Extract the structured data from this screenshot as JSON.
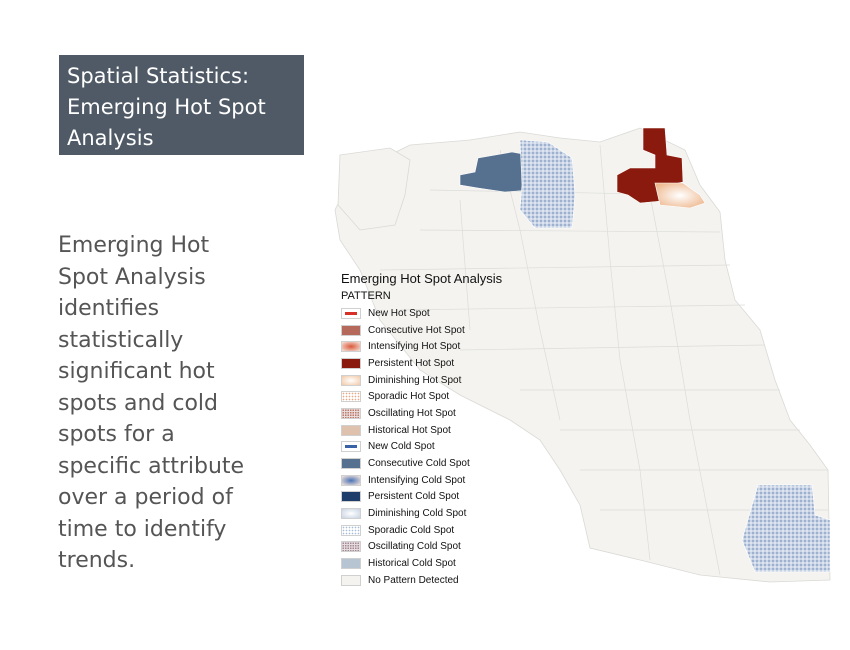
{
  "slide": {
    "title_lines": [
      "Spatial Statistics:",
      "Emerging Hot Spot",
      "Analysis"
    ],
    "body_lines": [
      "Emerging Hot",
      "Spot Analysis",
      "identifies",
      "statistically",
      "significant hot",
      "spots and cold",
      "spots for a",
      "specific attribute",
      "over a period of",
      "time to identify",
      "trends."
    ]
  },
  "map": {
    "legend": {
      "title": "Emerging Hot Spot Analysis",
      "subtitle": "PATTERN",
      "items": [
        {
          "label": "New Hot Spot",
          "color": "#d73027",
          "style": "outline"
        },
        {
          "label": "Consecutive Hot Spot",
          "color": "#b5695a",
          "style": "solid"
        },
        {
          "label": "Intensifying Hot Spot",
          "color": "#d9583b",
          "style": "radial"
        },
        {
          "label": "Persistent Hot Spot",
          "color": "#8b1a0e",
          "style": "solid"
        },
        {
          "label": "Diminishing Hot Spot",
          "color": "#f2c9a6",
          "style": "radial-light"
        },
        {
          "label": "Sporadic Hot Spot",
          "color": "#e8a888",
          "style": "dots"
        },
        {
          "label": "Oscillating Hot Spot",
          "color": "#c07a6a",
          "style": "dots-dense"
        },
        {
          "label": "Historical Hot Spot",
          "color": "#dfc2ad",
          "style": "solid"
        },
        {
          "label": "New Cold Spot",
          "color": "#3a62a7",
          "style": "outline"
        },
        {
          "label": "Consecutive Cold Spot",
          "color": "#56708f",
          "style": "solid"
        },
        {
          "label": "Intensifying Cold Spot",
          "color": "#4a72b5",
          "style": "radial"
        },
        {
          "label": "Persistent Cold Spot",
          "color": "#1f3d6b",
          "style": "solid"
        },
        {
          "label": "Diminishing Cold Spot",
          "color": "#c7d3e3",
          "style": "radial-light"
        },
        {
          "label": "Sporadic Cold Spot",
          "color": "#a8bcd6",
          "style": "dots"
        },
        {
          "label": "Oscillating Cold Spot",
          "color": "#a08a9a",
          "style": "dots-dense"
        },
        {
          "label": "Historical Cold Spot",
          "color": "#b7c4d1",
          "style": "solid"
        },
        {
          "label": "No Pattern Detected",
          "color": "#f4f3ef",
          "style": "solid"
        }
      ]
    }
  }
}
